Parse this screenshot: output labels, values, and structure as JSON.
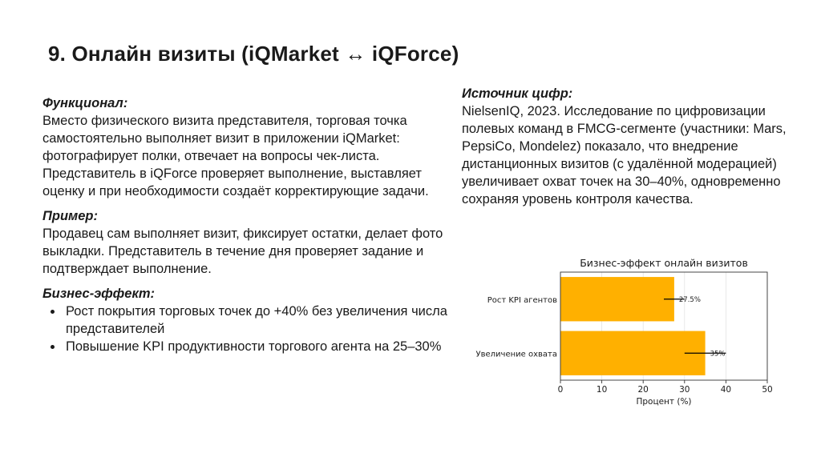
{
  "slide": {
    "title": "9. Онлайн визиты (iQMarket ↔ iQForce)"
  },
  "functional": {
    "heading": "Функционал:",
    "text": "Вместо физического визита представителя, торговая точка самостоятельно выполняет визит в приложении iQMarket: фотографирует полки, отвечает на вопросы чек-листа. Представитель в iQForce проверяет выполнение, выставляет оценку и при необходимости создаёт корректирующие задачи."
  },
  "example": {
    "heading": "Пример:",
    "text": "Продавец сам выполняет визит, фиксирует остатки, делает фото выкладки. Представитель в течение дня проверяет задание и подтверждает выполнение."
  },
  "business_effect": {
    "heading": "Бизнес-эффект:",
    "items": [
      "Рост покрытия торговых точек до +40% без увеличения числа представителей",
      "Повышение KPI продуктивности торгового агента на 25–30%"
    ]
  },
  "source": {
    "heading": "Источник цифр:",
    "text": "NielsenIQ, 2023. Исследование по цифровизации полевых команд в FMCG-сегменте (участники: Mars, PepsiCo, Mondelez) показало, что внедрение дистанционных визитов (с удалённой модерацией) увеличивает охват точек на 30–40%, одновременно сохраняя уровень контроля качества."
  },
  "chart_data": {
    "type": "bar",
    "orientation": "horizontal",
    "title": "Бизнес-эффект онлайн визитов",
    "xlabel": "Процент (%)",
    "ylabel": "",
    "categories": [
      "Рост KPI агентов",
      "Увеличение охвата"
    ],
    "values": [
      27.5,
      35
    ],
    "value_labels": [
      "27.5%",
      "35%"
    ],
    "error_bars": [
      [
        25,
        30
      ],
      [
        30,
        40
      ]
    ],
    "xlim": [
      0,
      50
    ],
    "xticks": [
      "0",
      "10",
      "20",
      "30",
      "40",
      "50"
    ],
    "grid": true,
    "bar_color": "#FFB000",
    "error_color": "#000000"
  }
}
